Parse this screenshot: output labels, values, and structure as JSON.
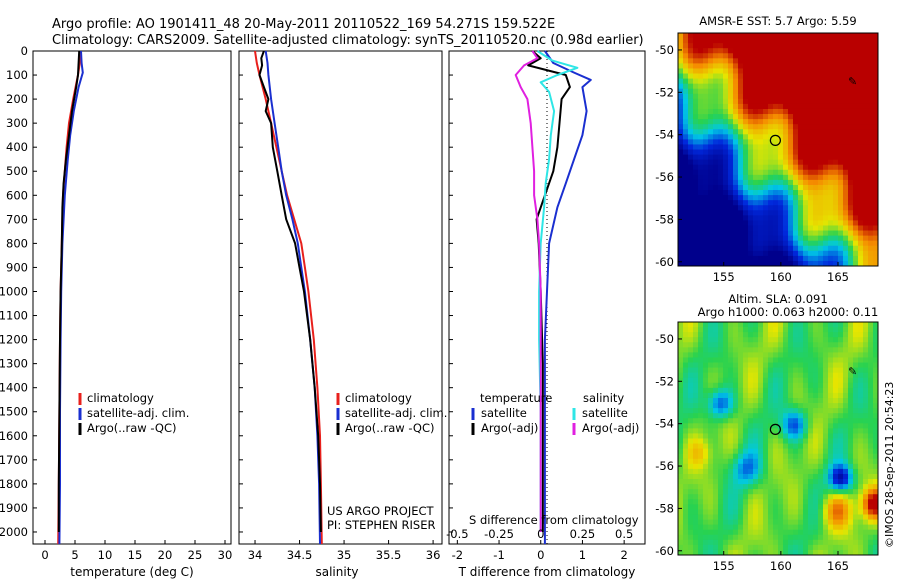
{
  "header": {
    "line1": "Argo profile: AO 1901411_48 20-May-2011 20110522_169 54.271S 159.522E",
    "line2": "Climatology: CARS2009. Satellite-adjusted climatology: synTS_20110520.nc (0.98d earlier)"
  },
  "depth_ticks": [
    0,
    100,
    200,
    300,
    400,
    500,
    600,
    700,
    800,
    900,
    1000,
    1100,
    1200,
    1300,
    1400,
    1500,
    1600,
    1700,
    1800,
    1900,
    2000
  ],
  "colors": {
    "climatology": "#e8201c",
    "satellite": "#1a2fd0",
    "argo": "#000000",
    "cyan": "#2ee6e6",
    "magenta": "#e020e0"
  },
  "credit": {
    "line1": "US ARGO PROJECT",
    "line2": "PI: STEPHEN RISER"
  },
  "watermark": "©IMOS 28-Sep-2011 20:54:23",
  "chart_data": [
    {
      "type": "line",
      "xlabel": "temperature (deg C)",
      "x_ticks": [
        "0",
        "5",
        "10",
        "15",
        "20",
        "25",
        "30"
      ],
      "xlim": [
        -2,
        31
      ],
      "ylim": [
        2050,
        0
      ],
      "legend": [
        "climatology",
        "satellite-adj. clim.",
        "Argo(..raw -QC)"
      ],
      "series": [
        {
          "name": "climatology",
          "depth": [
            0,
            50,
            100,
            200,
            300,
            400,
            500,
            600,
            800,
            1000,
            1200,
            1500,
            1800,
            2050
          ],
          "values": [
            5.9,
            5.8,
            5.5,
            4.7,
            4.0,
            3.6,
            3.3,
            3.0,
            2.8,
            2.6,
            2.5,
            2.4,
            2.3,
            2.2
          ]
        },
        {
          "name": "satellite-adj. clim.",
          "depth": [
            0,
            50,
            90,
            150,
            250,
            350,
            450,
            600,
            800,
            1000,
            1200,
            1500,
            1800,
            2050
          ],
          "values": [
            6.0,
            6.1,
            6.3,
            5.6,
            4.8,
            4.2,
            3.8,
            3.3,
            2.9,
            2.7,
            2.6,
            2.5,
            2.5,
            2.4
          ]
        },
        {
          "name": "Argo(..raw -QC)",
          "depth": [
            0,
            50,
            100,
            150,
            250,
            350,
            450,
            550,
            650,
            800,
            1000,
            1200,
            1500,
            1800,
            2000
          ],
          "values": [
            5.7,
            5.6,
            5.5,
            5.2,
            4.5,
            4.0,
            3.5,
            3.1,
            2.9,
            2.8,
            2.6,
            2.5,
            2.4,
            2.3,
            2.3
          ]
        }
      ]
    },
    {
      "type": "line",
      "xlabel": "salinity",
      "x_ticks": [
        "34",
        "34.5",
        "35",
        "35.5",
        "36"
      ],
      "xlim": [
        33.82,
        36.1
      ],
      "ylim": [
        2050,
        0
      ],
      "legend": [
        "climatology",
        "satellite-adj. clim.",
        "Argo(..raw -QC)"
      ],
      "series": [
        {
          "name": "climatology",
          "depth": [
            0,
            50,
            100,
            200,
            300,
            400,
            500,
            600,
            700,
            800,
            900,
            1000,
            1200,
            1400,
            1600,
            1800,
            2050
          ],
          "values": [
            34.0,
            34.02,
            34.05,
            34.12,
            34.18,
            34.24,
            34.3,
            34.36,
            34.44,
            34.52,
            34.56,
            34.6,
            34.66,
            34.7,
            34.73,
            34.74,
            34.75
          ]
        },
        {
          "name": "satellite-adj. clim.",
          "depth": [
            0,
            50,
            100,
            200,
            300,
            400,
            500,
            600,
            700,
            800,
            900,
            1000,
            1200,
            1400,
            1600,
            1800,
            2050
          ],
          "values": [
            34.12,
            34.14,
            34.15,
            34.18,
            34.22,
            34.26,
            34.3,
            34.35,
            34.42,
            34.48,
            34.52,
            34.56,
            34.62,
            34.67,
            34.7,
            34.72,
            34.73
          ]
        },
        {
          "name": "Argo(..raw -QC)",
          "depth": [
            0,
            30,
            60,
            100,
            150,
            200,
            250,
            300,
            400,
            500,
            600,
            700,
            800,
            900,
            1000,
            1200,
            1400,
            1600,
            1800,
            2000
          ],
          "values": [
            34.1,
            34.07,
            34.08,
            34.05,
            34.1,
            34.15,
            34.12,
            34.18,
            34.2,
            34.25,
            34.3,
            34.35,
            34.45,
            34.5,
            34.55,
            34.62,
            34.67,
            34.71,
            34.73,
            34.74
          ]
        }
      ]
    },
    {
      "type": "line",
      "xlabel": "T difference from climatology",
      "x_ticks_bottom": [
        "-2",
        "-1",
        "0",
        "1",
        "2"
      ],
      "x_ticks_top_label": "S difference from climatology",
      "x_ticks_top": [
        "-0.5",
        "-0.25",
        "0",
        "0.25",
        "0.5"
      ],
      "legend_temperature_title": "temperature",
      "legend_salinity_title": "salinity",
      "legend_temperature": [
        "satellite",
        "Argo(-adj)"
      ],
      "legend_salinity": [
        "satellite",
        "Argo(-adj)"
      ],
      "xlim": [
        -2.2,
        2.5
      ],
      "ylim": [
        2050,
        0
      ],
      "series": [
        {
          "name": "T satellite",
          "depth": [
            0,
            50,
            90,
            120,
            150,
            250,
            350,
            450,
            550,
            650,
            800,
            1000,
            1200,
            1500,
            1800,
            2050
          ],
          "values": [
            0.1,
            0.3,
            0.8,
            1.2,
            1.0,
            1.1,
            1.0,
            0.8,
            0.6,
            0.4,
            0.2,
            0.15,
            0.1,
            0.1,
            0.1,
            0.1
          ]
        },
        {
          "name": "T Argo(-adj)",
          "depth": [
            0,
            30,
            60,
            100,
            150,
            200,
            300,
            400,
            500,
            600,
            700,
            800,
            1000,
            1300,
            1600,
            2000
          ],
          "values": [
            -0.2,
            0.0,
            -0.3,
            0.6,
            0.7,
            0.5,
            0.45,
            0.4,
            0.3,
            0.1,
            -0.1,
            -0.05,
            0.0,
            0.05,
            0.05,
            0.05
          ]
        },
        {
          "name": "S satellite",
          "depth": [
            0,
            40,
            70,
            100,
            130,
            170,
            250,
            350,
            450,
            550,
            650,
            800,
            1000,
            1200,
            1500,
            1800,
            2000
          ],
          "values": [
            -0.02,
            0.07,
            0.22,
            0.1,
            0.0,
            0.05,
            0.08,
            0.06,
            0.05,
            0.03,
            0.02,
            0.0,
            -0.01,
            -0.01,
            0.0,
            0.0,
            0.0
          ]
        },
        {
          "name": "S Argo(-adj)",
          "depth": [
            0,
            30,
            60,
            100,
            150,
            200,
            300,
            400,
            500,
            600,
            700,
            800,
            1000,
            1300,
            1600,
            2000
          ],
          "values": [
            -0.05,
            -0.02,
            -0.1,
            -0.15,
            -0.12,
            -0.08,
            -0.06,
            -0.05,
            -0.04,
            -0.04,
            -0.02,
            -0.01,
            0.0,
            0.0,
            0.0,
            0.0
          ]
        }
      ]
    },
    {
      "type": "heatmap",
      "title": "AMSR-E SST: 5.7 Argo: 5.59",
      "x_ticks": [
        "155",
        "160",
        "165"
      ],
      "y_ticks": [
        "-50",
        "-52",
        "-54",
        "-56",
        "-58",
        "-60"
      ],
      "xlim": [
        151,
        168.5
      ],
      "ylim": [
        -60.2,
        -49.2
      ],
      "argo_position": [
        159.52,
        -54.27
      ]
    },
    {
      "type": "heatmap",
      "title": "Altim. SLA: 0.091",
      "subtitle": "Argo h1000: 0.063 h2000: 0.11",
      "x_ticks": [
        "155",
        "160",
        "165"
      ],
      "y_ticks": [
        "-50",
        "-52",
        "-54",
        "-56",
        "-58",
        "-60"
      ],
      "xlim": [
        151,
        168.5
      ],
      "ylim": [
        -60.2,
        -49.2
      ],
      "argo_position": [
        159.52,
        -54.27
      ]
    }
  ]
}
